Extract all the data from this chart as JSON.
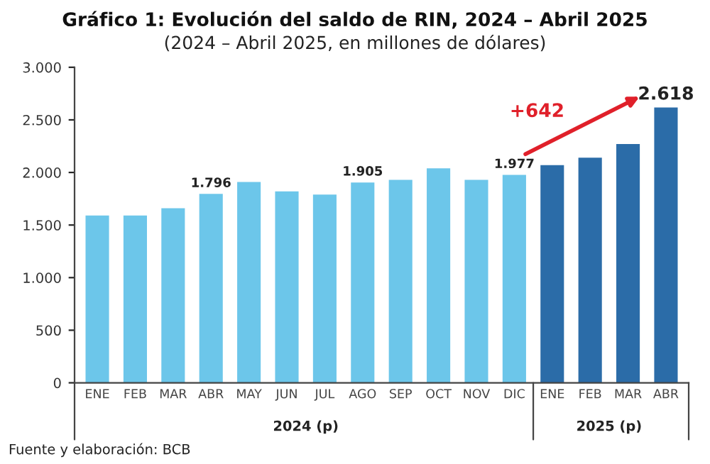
{
  "chart_data": {
    "type": "bar",
    "title": "Gráfico 1: Evolución del saldo de RIN, 2024 – Abril 2025",
    "subtitle": "(2024 – Abril 2025, en millones de dólares)",
    "categories": [
      "ENE",
      "FEB",
      "MAR",
      "ABR",
      "MAY",
      "JUN",
      "JUL",
      "AGO",
      "SEP",
      "OCT",
      "NOV",
      "DIC",
      "ENE",
      "FEB",
      "MAR",
      "ABR"
    ],
    "values": [
      1590,
      1590,
      1660,
      1796,
      1910,
      1820,
      1790,
      1905,
      1930,
      2040,
      1930,
      1977,
      2070,
      2140,
      2270,
      2618
    ],
    "value_labels": [
      null,
      null,
      null,
      "1.796",
      null,
      null,
      null,
      "1.905",
      null,
      null,
      null,
      "1.977",
      null,
      null,
      null,
      "2.618"
    ],
    "colors": [
      "#6cc6ea",
      "#6cc6ea",
      "#6cc6ea",
      "#6cc6ea",
      "#6cc6ea",
      "#6cc6ea",
      "#6cc6ea",
      "#6cc6ea",
      "#6cc6ea",
      "#6cc6ea",
      "#6cc6ea",
      "#6cc6ea",
      "#2b6ca8",
      "#2b6ca8",
      "#2b6ca8",
      "#2b6ca8"
    ],
    "ylim": [
      0,
      3000
    ],
    "yticks": [
      {
        "value": 0,
        "label": "0"
      },
      {
        "value": 500,
        "label": "500"
      },
      {
        "value": 1000,
        "label": "1.000"
      },
      {
        "value": 1500,
        "label": "1.500"
      },
      {
        "value": 2000,
        "label": "2.000"
      },
      {
        "value": 2500,
        "label": "2.500"
      },
      {
        "value": 3000,
        "label": "3.000"
      }
    ],
    "annotations": [
      "+642",
      "2024 (p)",
      "2025 (p)",
      "Fuente y elaboración: BCB"
    ],
    "grid": false
  }
}
